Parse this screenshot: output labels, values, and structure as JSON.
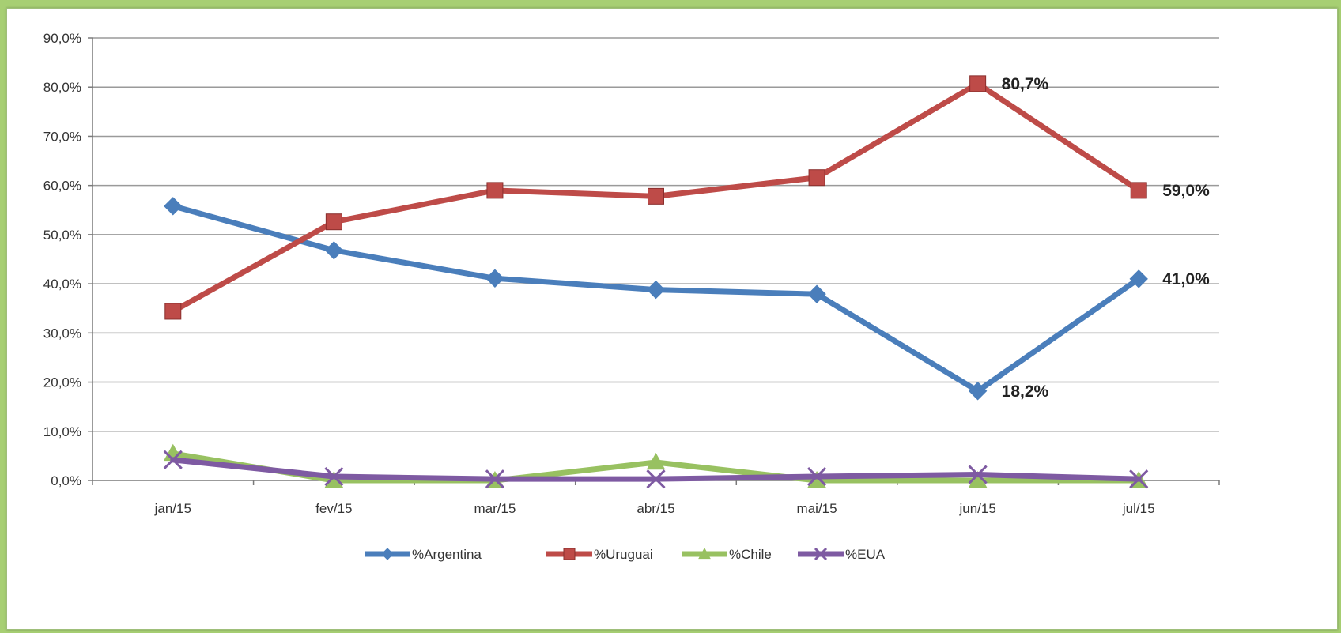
{
  "chart_data": {
    "type": "line",
    "categories": [
      "jan/15",
      "fev/15",
      "mar/15",
      "abr/15",
      "mai/15",
      "jun/15",
      "jul/15"
    ],
    "ylim": [
      0,
      90
    ],
    "y_ticks": [
      "0,0%",
      "10,0%",
      "20,0%",
      "30,0%",
      "40,0%",
      "50,0%",
      "60,0%",
      "70,0%",
      "80,0%",
      "90,0%"
    ],
    "grid": true,
    "legend_position": "bottom",
    "series": [
      {
        "name": "%Argentina",
        "color": "#4a7ebb",
        "marker": "diamond",
        "values": [
          55.8,
          46.8,
          41.1,
          38.8,
          37.9,
          18.2,
          41.0
        ]
      },
      {
        "name": "%Uruguai",
        "color": "#be4b48",
        "marker": "square",
        "values": [
          34.4,
          52.6,
          59.0,
          57.8,
          61.6,
          80.7,
          59.0
        ]
      },
      {
        "name": "%Chile",
        "color": "#98c161",
        "marker": "triangle",
        "values": [
          5.5,
          0.0,
          0.0,
          3.7,
          0.0,
          0.0,
          0.0
        ]
      },
      {
        "name": "%EUA",
        "color": "#7e5aa2",
        "marker": "x",
        "values": [
          4.2,
          0.8,
          0.3,
          0.3,
          0.8,
          1.2,
          0.3
        ]
      }
    ],
    "annotations": [
      {
        "series": "%Uruguai",
        "category": "jun/15",
        "text": "80,7%"
      },
      {
        "series": "%Uruguai",
        "category": "jul/15",
        "text": "59,0%"
      },
      {
        "series": "%Argentina",
        "category": "jul/15",
        "text": "41,0%"
      },
      {
        "series": "%Argentina",
        "category": "jun/15",
        "text": "18,2%"
      }
    ]
  }
}
